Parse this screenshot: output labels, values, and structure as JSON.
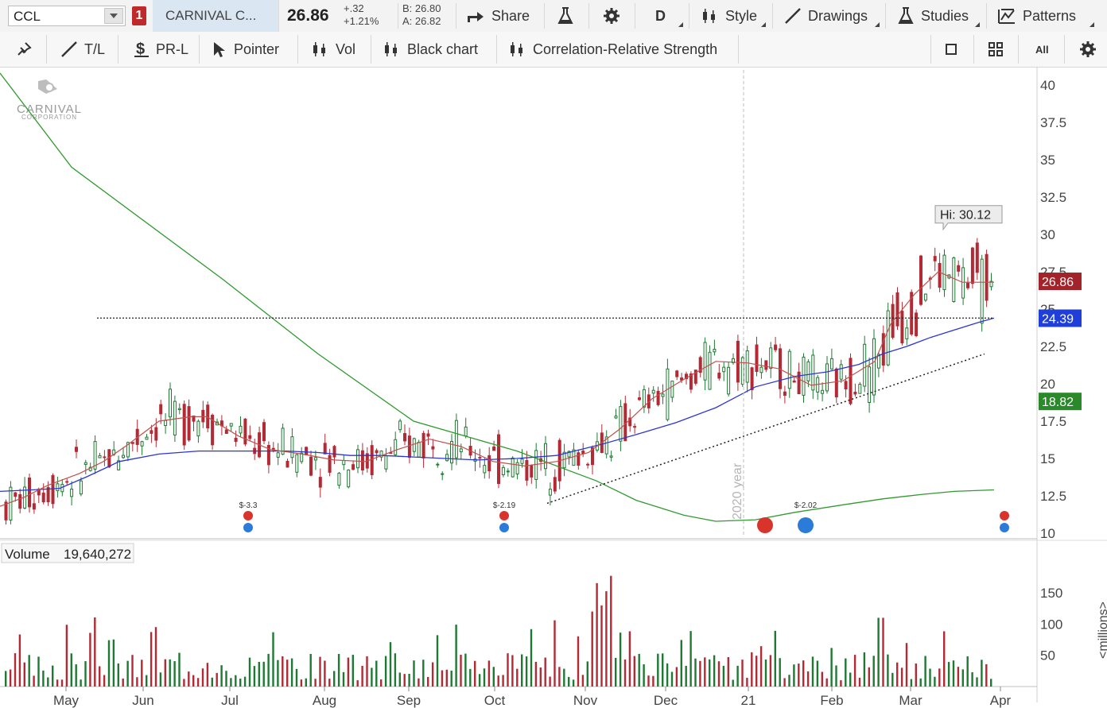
{
  "toolbar1": {
    "symbol": "CCL",
    "badge": "1",
    "name": "CARNIVAL C...",
    "price": "26.86",
    "change": "+.32",
    "change_pct": "+1.21%",
    "bid": "B: 26.80",
    "ask": "A: 26.82",
    "share": "Share",
    "period": "D",
    "style": "Style",
    "drawings": "Drawings",
    "studies": "Studies",
    "patterns": "Patterns"
  },
  "toolbar2": {
    "tl": "T/L",
    "prl": "PR-L",
    "pointer": "Pointer",
    "vol": "Vol",
    "black_chart": "Black chart",
    "corr": "Correlation-Relative Strength",
    "all": "All"
  },
  "logo": {
    "line1": "CARNIVAL",
    "line2": "CORPORATION"
  },
  "colors": {
    "up": "#1e7a32",
    "down": "#b32a35",
    "sma20": "#c0504d",
    "sma50": "#2b35d6",
    "sma200": "#2f9a2f",
    "price_tag": "#a3232b",
    "ma50_tag": "#1f3fd8",
    "ma200_tag": "#2a8a2a"
  },
  "chart_data": [
    {
      "type": "candlestick",
      "title": "CCL",
      "x_labels": [
        "May",
        "Jun",
        "Jul",
        "Aug",
        "Sep",
        "Oct",
        "Nov",
        "Dec",
        "21",
        "Feb",
        "Mar",
        "Apr"
      ],
      "ylim": [
        10,
        41
      ],
      "y_ticks": [
        "40",
        "37.5",
        "35",
        "32.5",
        "30",
        "27.5",
        "25",
        "22.5",
        "20",
        "17.5",
        "15",
        "12.5",
        "10"
      ],
      "year_marker": "2020 year",
      "hi_label": "Hi: 30.12",
      "price_tags": [
        {
          "label": "26.86",
          "value": 26.86,
          "color": "#a3232b"
        },
        {
          "label": "24.39",
          "value": 24.39,
          "color": "#1f3fd8"
        },
        {
          "label": "18.82",
          "value": 18.82,
          "color": "#2a8a2a"
        }
      ],
      "horizontal_level": 24.4,
      "trendline": [
        {
          "x": "Oct 20",
          "y": 12.0
        },
        {
          "x": "Mar 26",
          "y": 22.0
        }
      ],
      "earnings": [
        {
          "label": "$-3.3",
          "month": "Jun"
        },
        {
          "label": "$-2.19",
          "month": "Oct"
        },
        {
          "label": "$-2.02",
          "month": "Feb"
        }
      ],
      "sma200": [
        [
          0,
          40.8
        ],
        [
          90,
          34.5
        ],
        [
          280,
          27
        ],
        [
          400,
          22
        ],
        [
          520,
          17.5
        ],
        [
          650,
          15.5
        ],
        [
          750,
          13.5
        ],
        [
          800,
          12.2
        ],
        [
          860,
          11.2
        ],
        [
          900,
          10.8
        ],
        [
          950,
          10.9
        ],
        [
          1000,
          11.4
        ],
        [
          1060,
          11.9
        ],
        [
          1110,
          12.3
        ],
        [
          1160,
          12.6
        ],
        [
          1200,
          12.8
        ],
        [
          1250,
          12.9
        ]
      ],
      "sma50": [
        [
          0,
          12.8
        ],
        [
          40,
          12.9
        ],
        [
          75,
          13
        ],
        [
          110,
          13.8
        ],
        [
          150,
          14.8
        ],
        [
          200,
          15.3
        ],
        [
          250,
          15.5
        ],
        [
          300,
          15.5
        ],
        [
          360,
          15.5
        ],
        [
          400,
          15.4
        ],
        [
          440,
          15.2
        ],
        [
          480,
          15.2
        ],
        [
          520,
          15.1
        ],
        [
          560,
          15.0
        ],
        [
          600,
          14.9
        ],
        [
          650,
          15
        ],
        [
          700,
          15.2
        ],
        [
          760,
          16
        ],
        [
          800,
          16.6
        ],
        [
          850,
          17.4
        ],
        [
          900,
          18.4
        ],
        [
          950,
          19.8
        ],
        [
          1000,
          20.5
        ],
        [
          1040,
          20.8
        ],
        [
          1080,
          21.3
        ],
        [
          1110,
          22.0
        ],
        [
          1140,
          22.5
        ],
        [
          1170,
          23.1
        ],
        [
          1200,
          23.6
        ],
        [
          1230,
          24.1
        ],
        [
          1250,
          24.4
        ]
      ],
      "sma20": [
        [
          0,
          11.8
        ],
        [
          30,
          12.4
        ],
        [
          60,
          13.2
        ],
        [
          100,
          14.0
        ],
        [
          130,
          14.8
        ],
        [
          160,
          15.9
        ],
        [
          200,
          17.5
        ],
        [
          240,
          17.8
        ],
        [
          260,
          17.8
        ],
        [
          300,
          16.5
        ],
        [
          340,
          15.6
        ],
        [
          380,
          15.3
        ],
        [
          420,
          14.9
        ],
        [
          460,
          14.8
        ],
        [
          500,
          15.6
        ],
        [
          540,
          16.3
        ],
        [
          580,
          15.8
        ],
        [
          620,
          14.8
        ],
        [
          660,
          14.5
        ],
        [
          700,
          14.8
        ],
        [
          740,
          15.4
        ],
        [
          780,
          17.0
        ],
        [
          820,
          19.0
        ],
        [
          860,
          20.3
        ],
        [
          900,
          21.5
        ],
        [
          940,
          21.4
        ],
        [
          980,
          21.0
        ],
        [
          1020,
          19.9
        ],
        [
          1060,
          20.2
        ],
        [
          1100,
          21.5
        ],
        [
          1120,
          24.0
        ],
        [
          1150,
          26.0
        ],
        [
          1180,
          27.5
        ],
        [
          1210,
          26.8
        ],
        [
          1250,
          26.8
        ]
      ]
    },
    {
      "type": "bar",
      "title": "Volume",
      "value_label": "19,640,272",
      "ylabel": "<millions>",
      "ylim": [
        0,
        180
      ],
      "y_ticks": [
        "150",
        "100",
        "50"
      ]
    }
  ]
}
